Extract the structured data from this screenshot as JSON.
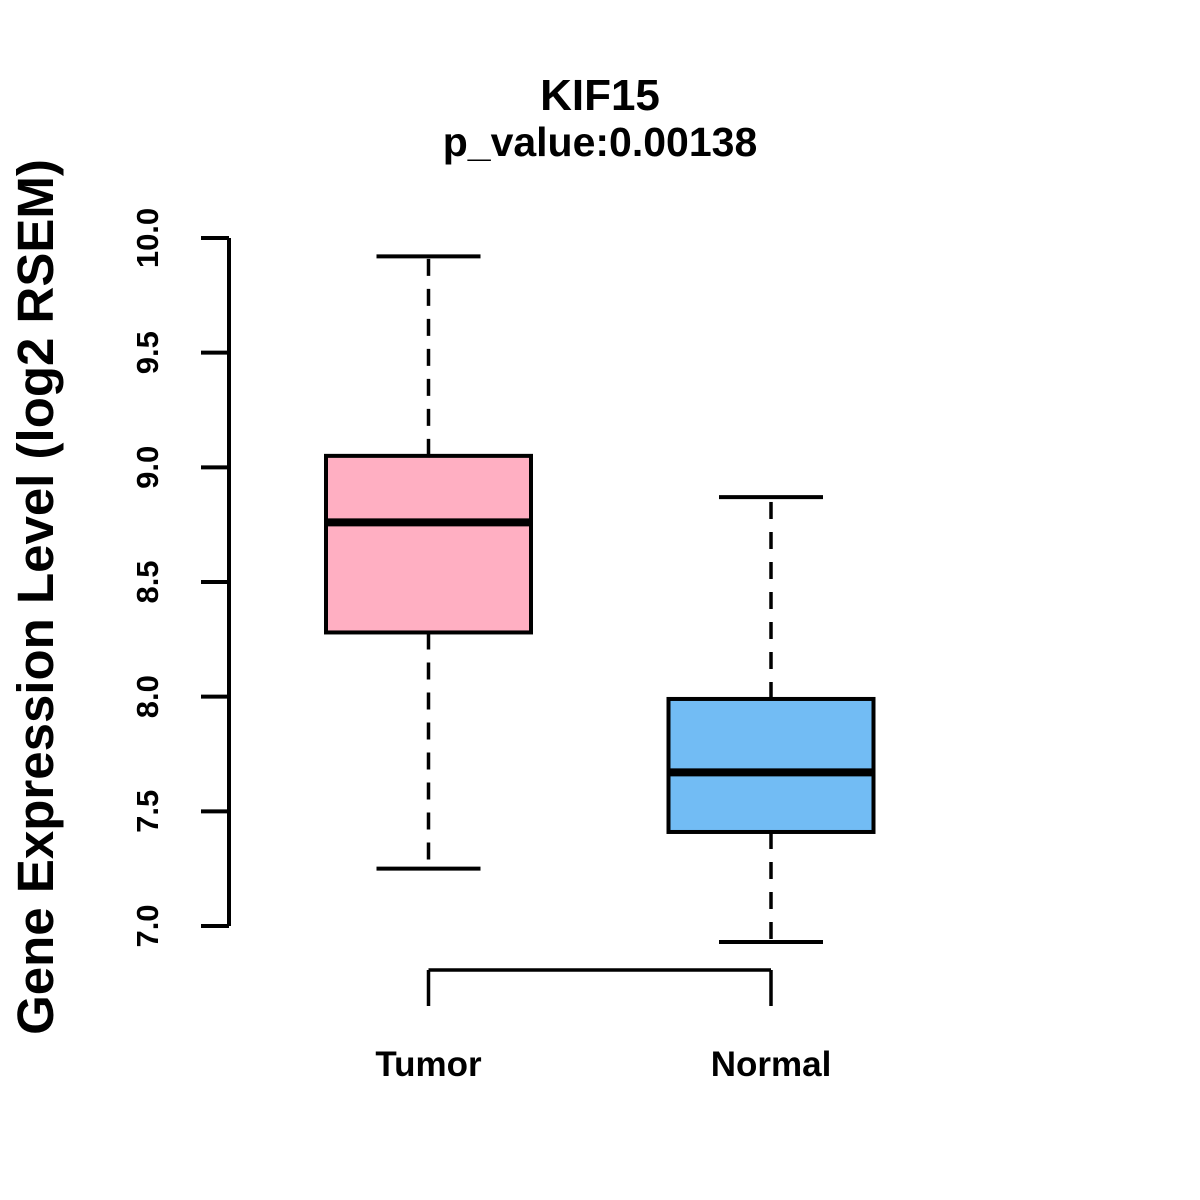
{
  "chart_data": {
    "type": "boxplot",
    "title": "KIF15",
    "subtitle": "p_value:0.00138",
    "p_value": 0.00138,
    "ylabel": "Gene Expression Level (log2 RSEM)",
    "categories": [
      "Tumor",
      "Normal"
    ],
    "series": [
      {
        "name": "Tumor",
        "color": "#FFAFC2",
        "whisker_low": 7.25,
        "q1": 8.28,
        "median": 8.76,
        "q3": 9.05,
        "whisker_high": 9.92
      },
      {
        "name": "Normal",
        "color": "#72BCF4",
        "whisker_low": 6.93,
        "q1": 7.41,
        "median": 7.67,
        "q3": 7.99,
        "whisker_high": 8.87
      }
    ],
    "ylim": [
      7.0,
      10.0
    ],
    "ytick_step": 0.5,
    "yticks": [
      7.0,
      7.5,
      8.0,
      8.5,
      9.0,
      9.5,
      10.0
    ],
    "ytick_labels": [
      "7.0",
      "7.5",
      "8.0",
      "8.5",
      "9.0",
      "9.5",
      "10.0"
    ],
    "grid": false,
    "box_border_color": "#000000",
    "median_color": "#000000",
    "background": "#FFFFFF"
  }
}
